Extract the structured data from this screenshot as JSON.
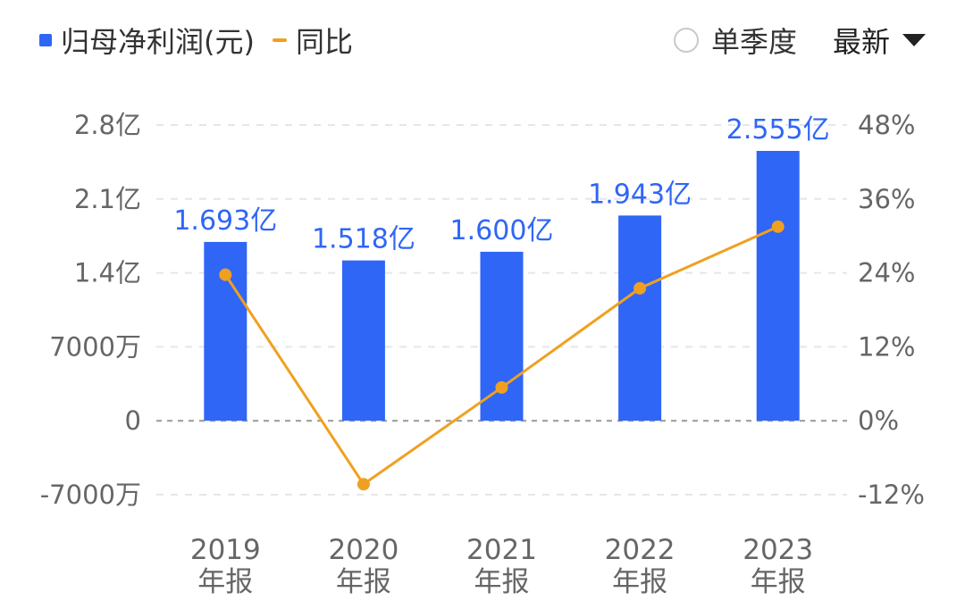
{
  "legend": {
    "bar_label": "归母净利润(元)",
    "line_label": "同比"
  },
  "controls": {
    "quarterly_label": "单季度",
    "dropdown_value": "最新"
  },
  "colors": {
    "bar": "#2f66f6",
    "line": "#f0a020",
    "grid": "#e6e6e6",
    "zero_line": "#999999"
  },
  "chart_data": {
    "type": "bar",
    "categories": [
      "2019年报",
      "2020年报",
      "2021年报",
      "2022年报",
      "2023年报"
    ],
    "category_lines": [
      [
        "2019",
        "年报"
      ],
      [
        "2020",
        "年报"
      ],
      [
        "2021",
        "年报"
      ],
      [
        "2022",
        "年报"
      ],
      [
        "2023",
        "年报"
      ]
    ],
    "series": [
      {
        "name": "归母净利润(元)",
        "type": "bar",
        "axis": "left",
        "values": [
          169300000,
          151800000,
          160000000,
          194300000,
          255500000
        ],
        "labels": [
          "1.693亿",
          "1.518亿",
          "1.600亿",
          "1.943亿",
          "2.555亿"
        ]
      },
      {
        "name": "同比",
        "type": "line",
        "axis": "right",
        "values": [
          23.7,
          -10.3,
          5.4,
          21.5,
          31.5
        ]
      }
    ],
    "left_axis": {
      "ylim": [
        -70000000,
        280000000
      ],
      "ticks": [
        280000000,
        210000000,
        140000000,
        70000000,
        0,
        -70000000
      ],
      "tick_labels": [
        "2.8亿",
        "2.1亿",
        "1.4亿",
        "7000万",
        "0",
        "-7000万"
      ]
    },
    "right_axis": {
      "ylim": [
        -12,
        48
      ],
      "ticks": [
        48,
        36,
        24,
        12,
        0,
        -12
      ],
      "tick_labels": [
        "48%",
        "36%",
        "24%",
        "12%",
        "0%",
        "-12%"
      ]
    },
    "grid": true,
    "legend_position": "top-left"
  }
}
